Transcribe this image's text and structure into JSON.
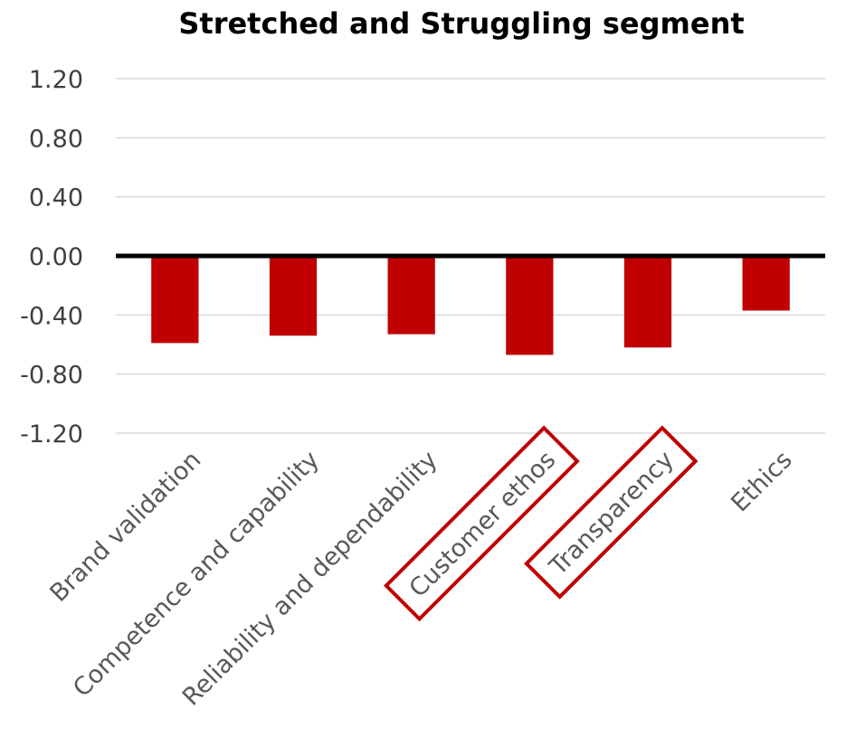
{
  "chart_data": {
    "type": "bar",
    "title": "Stretched and Struggling segment",
    "xlabel": "",
    "ylabel": "",
    "categories": [
      "Brand validation",
      "Competence and capability",
      "Reliability and dependability",
      "Customer ethos",
      "Transparency",
      "Ethics"
    ],
    "values": [
      -0.59,
      -0.54,
      -0.53,
      -0.67,
      -0.62,
      -0.37
    ],
    "ylim": [
      -1.2,
      1.2
    ],
    "yticks": [
      "1.20",
      "0.80",
      "0.40",
      "0.00",
      "-0.40",
      "-0.80",
      "-1.20"
    ],
    "grid": true,
    "legend": "none",
    "highlighted_categories": [
      "Customer ethos",
      "Transparency"
    ],
    "colors": {
      "bar": "#c00000",
      "highlight_box": "#c00000",
      "zero_line": "#000000",
      "grid": "#d9d9d9"
    }
  }
}
